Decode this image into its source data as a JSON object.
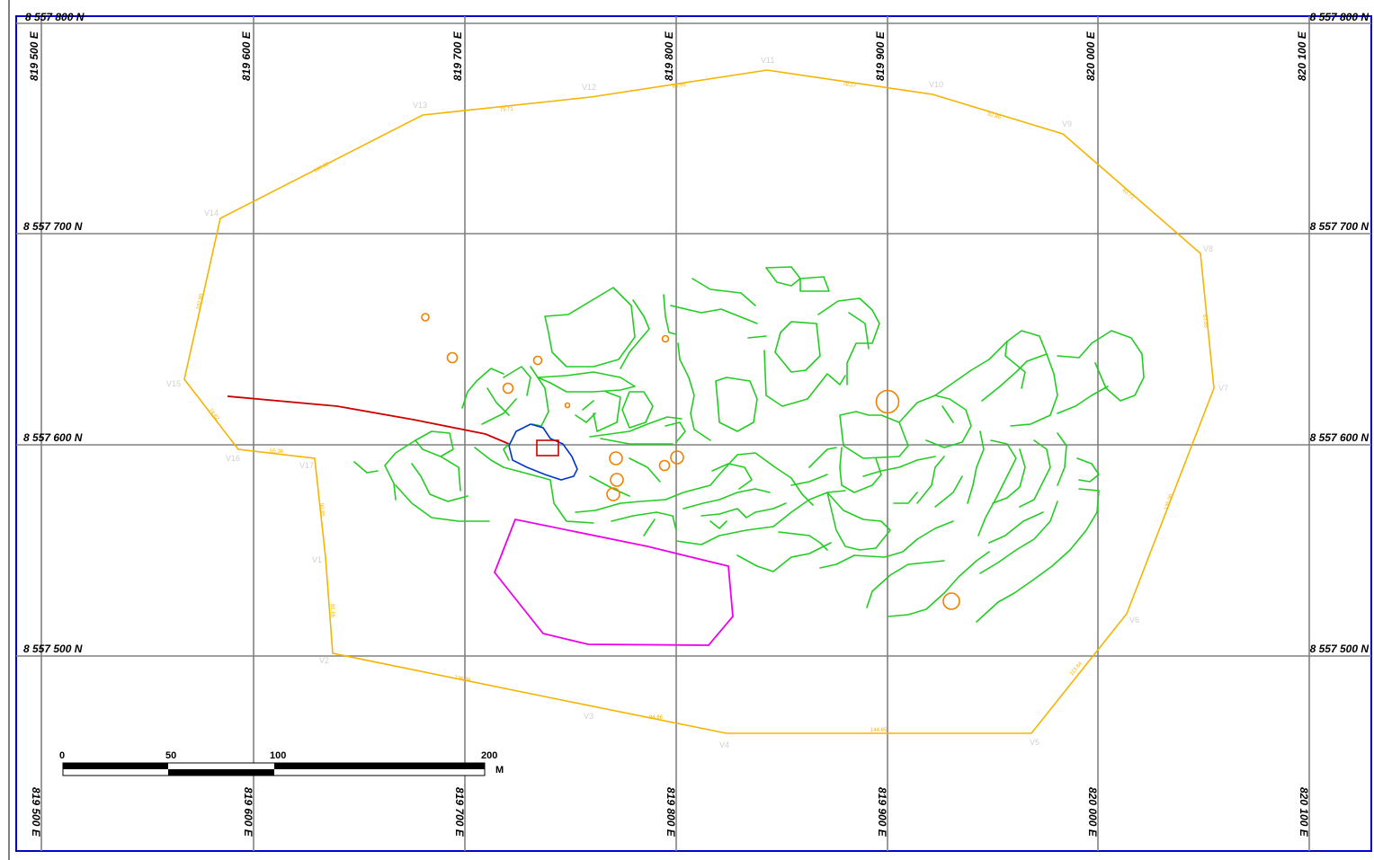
{
  "grid": {
    "northings": [
      {
        "label": "8 557 800 N"
      },
      {
        "label": "8 557 700 N"
      },
      {
        "label": "8 557 600 N"
      },
      {
        "label": "8 557 500 N"
      }
    ],
    "eastings": [
      {
        "label": "819 500 E"
      },
      {
        "label": "819 600 E"
      },
      {
        "label": "819 700 E"
      },
      {
        "label": "819 800 E"
      },
      {
        "label": "819 900 E"
      },
      {
        "label": "820 000 E"
      },
      {
        "label": "820 100 E"
      }
    ]
  },
  "boundary": {
    "color": "#f5b400",
    "vertices": [
      "V1",
      "V2",
      "V3",
      "V4",
      "V5",
      "V6",
      "V7",
      "V8",
      "V9",
      "V10",
      "V11",
      "V12",
      "V13",
      "V14",
      "V15",
      "V16",
      "V17"
    ],
    "segment_lengths": [
      "85.66",
      "136.89",
      "94.66",
      "144.65",
      "113.64",
      "135.00",
      "83.85",
      "83.71",
      "82.86",
      "78.27",
      "85.95",
      "79.71",
      "100.32",
      "102.89",
      "74.82",
      "55.36",
      "90.85"
    ]
  },
  "scale_bar": {
    "labels": [
      "0",
      "50",
      "100",
      "200"
    ],
    "unit": "M"
  },
  "colors": {
    "frame": "#0000cc",
    "grid": "#808080",
    "trails": "#22cc22",
    "road": "#cc0000",
    "pond": "#0033cc",
    "structure": "#cc0000",
    "zone": "#ee00ee",
    "markers": "#f08000"
  }
}
